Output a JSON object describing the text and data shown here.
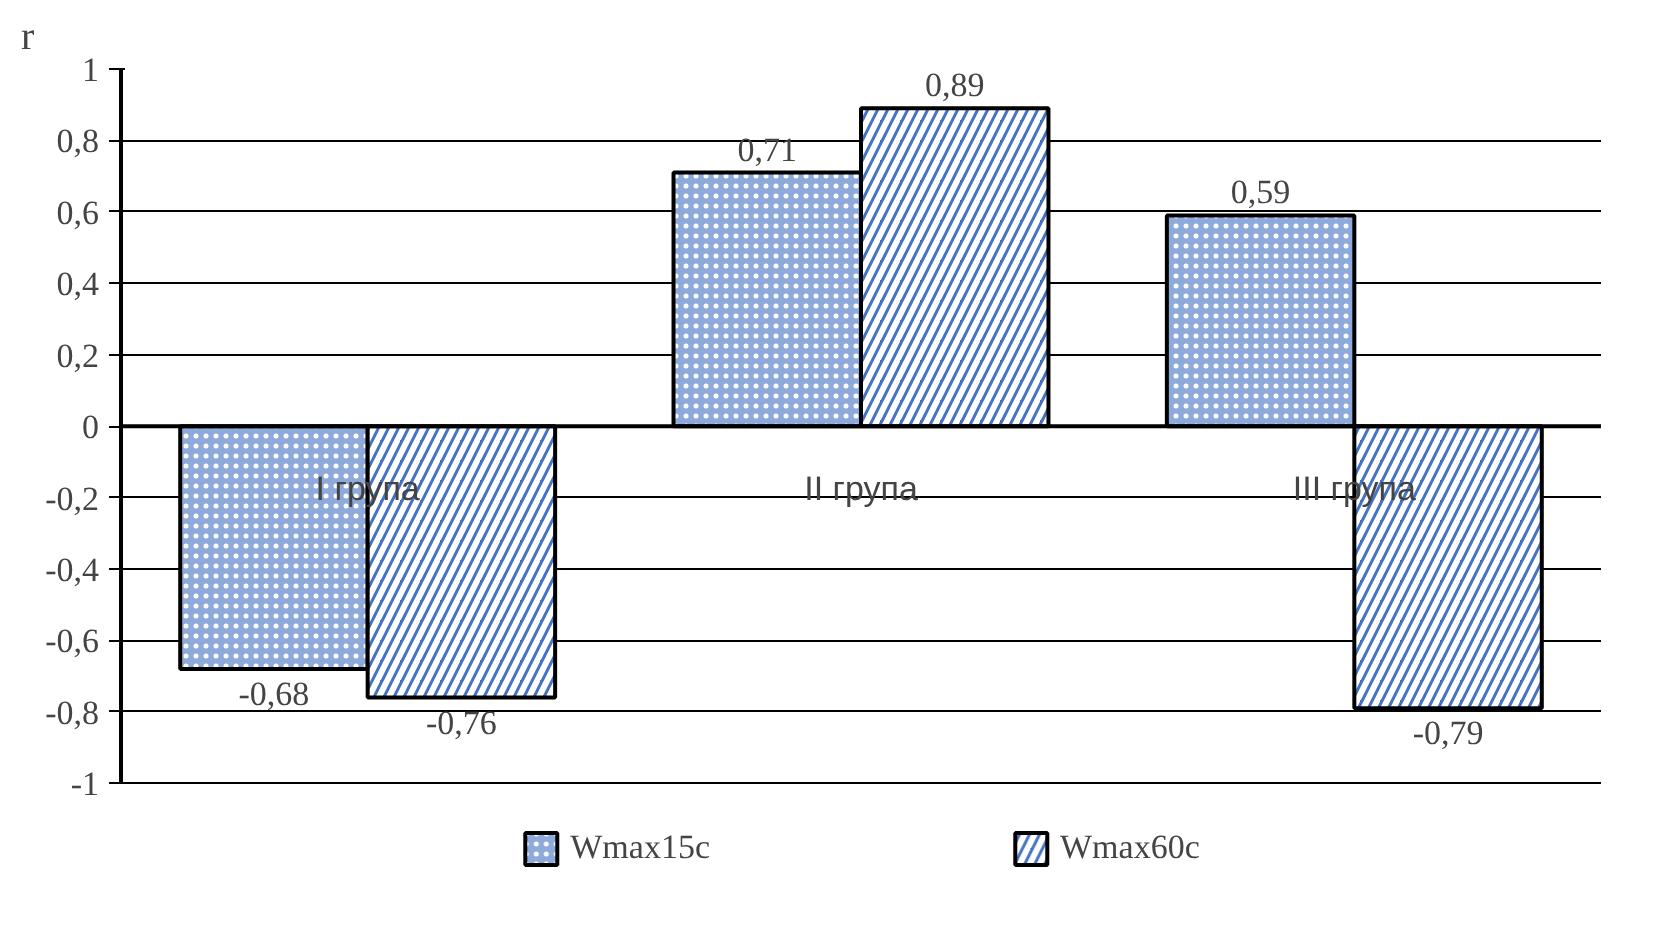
{
  "chart_data": {
    "type": "bar",
    "ylabel": "r",
    "categories": [
      "I група",
      "II група",
      "III група"
    ],
    "series": [
      {
        "name": "Wmax15c",
        "color": "#8eaadb",
        "values": [
          -0.68,
          0.71,
          0.59
        ],
        "value_labels": [
          "-0,68",
          "0,71",
          "0,59"
        ]
      },
      {
        "name": "Wmax60c",
        "color": "#4472c4",
        "values": [
          -0.76,
          0.89,
          -0.79
        ],
        "value_labels": [
          "-0,76",
          "0,89",
          "-0,79"
        ]
      }
    ],
    "ylim": [
      -1,
      1
    ],
    "yticks": [
      {
        "value": -1,
        "label": "-1"
      },
      {
        "value": -0.8,
        "label": "-0,8"
      },
      {
        "value": -0.6,
        "label": "-0,6"
      },
      {
        "value": -0.4,
        "label": "-0,4"
      },
      {
        "value": -0.2,
        "label": "-0,2"
      },
      0,
      {
        "value": 0.2,
        "label": "0,2"
      },
      {
        "value": 0.4,
        "label": "0,4"
      },
      {
        "value": 0.6,
        "label": "0,6"
      },
      {
        "value": 0.8,
        "label": "0,8"
      },
      1
    ],
    "grid": "y",
    "legend": "bottom"
  }
}
